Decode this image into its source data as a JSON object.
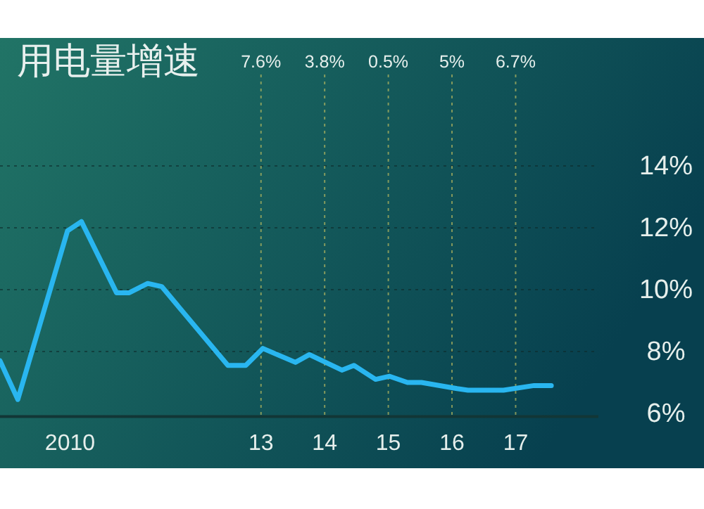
{
  "chart_data": {
    "type": "line",
    "title": "用电量增速",
    "x": [
      2008.9,
      2009.18,
      2009.96,
      2010.18,
      2010.73,
      2010.93,
      2011.22,
      2011.44,
      2012.48,
      2012.76,
      2013.03,
      2013.54,
      2013.76,
      2014.27,
      2014.46,
      2014.8,
      2015.02,
      2015.3,
      2015.52,
      2016.08,
      2016.25,
      2016.81,
      2017.29,
      2017.56
    ],
    "series": [
      {
        "color": "#29b6f0",
        "values": [
          7.7,
          6.45,
          11.9,
          12.2,
          9.9,
          9.9,
          10.2,
          10.1,
          7.55,
          7.55,
          8.1,
          7.65,
          7.9,
          7.4,
          7.55,
          7.1,
          7.2,
          7.0,
          7.0,
          6.8,
          6.75,
          6.75,
          6.9,
          6.9
        ]
      }
    ],
    "xlim": [
      2008.9,
      2018.3
    ],
    "xticks": [
      {
        "value": 2010,
        "label": "2010"
      },
      {
        "value": 2013,
        "label": "13"
      },
      {
        "value": 2014,
        "label": "14"
      },
      {
        "value": 2015,
        "label": "15"
      },
      {
        "value": 2016,
        "label": "16"
      },
      {
        "value": 2017,
        "label": "17"
      }
    ],
    "ylim": [
      5.9,
      16.8
    ],
    "yticks": [
      {
        "value": 6,
        "label": "6%"
      },
      {
        "value": 8,
        "label": "8%"
      },
      {
        "value": 10,
        "label": "10%"
      },
      {
        "value": 12,
        "label": "12%"
      },
      {
        "value": 14,
        "label": "14%"
      }
    ],
    "annotations": [
      "7.6%",
      "3.8%",
      "0.5%",
      "5%",
      "6.7%"
    ],
    "grid": true,
    "marker": "none",
    "line_style": "solid"
  }
}
